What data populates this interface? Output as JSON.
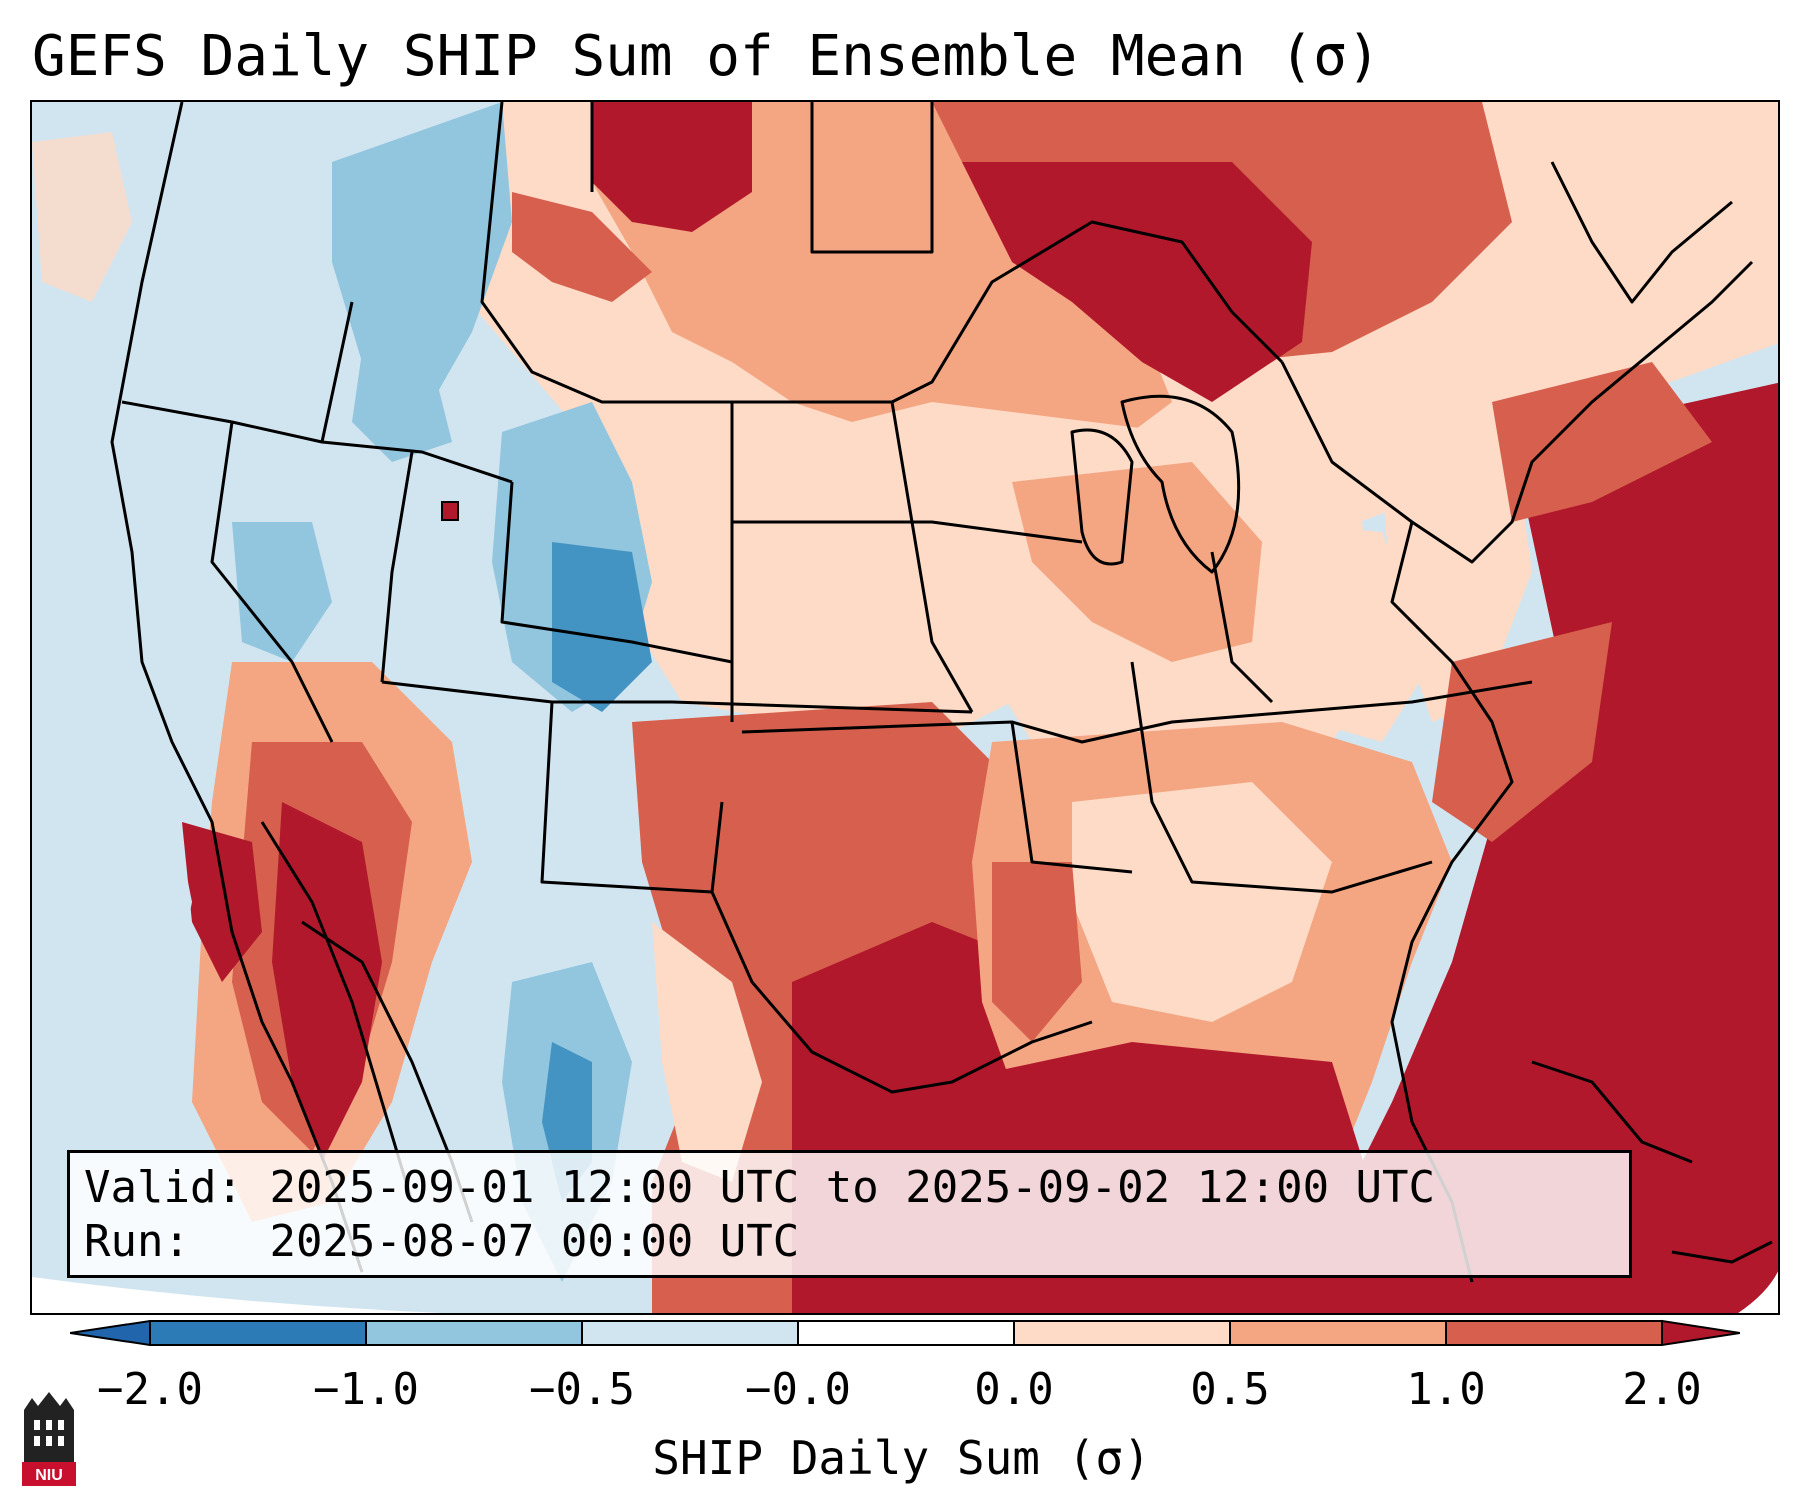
{
  "title": "GEFS Daily SHIP Sum of Ensemble Mean (σ)",
  "info": {
    "valid_label": "Valid:",
    "valid_value": "2025-09-01 12:00 UTC to 2025-09-02 12:00 UTC",
    "run_label": "Run:",
    "run_value": "2025-08-07 00:00 UTC"
  },
  "colorbar": {
    "label": "SHIP Daily Sum (σ)",
    "ticks": [
      "−2.0",
      "−1.0",
      "−0.5",
      "−0.0",
      "0.0",
      "0.5",
      "1.0",
      "2.0"
    ],
    "colors": [
      "#2c7bb6",
      "#4393c3",
      "#92c5de",
      "#d1e5f0",
      "#fddbc7",
      "#f4a582",
      "#d6604d",
      "#b2182b"
    ]
  },
  "logo": {
    "text": "NIU"
  },
  "colors": {
    "ocean_background": "#cfe3ee",
    "strong_positive": "#b2182b",
    "strong_negative": "#2166ac"
  }
}
